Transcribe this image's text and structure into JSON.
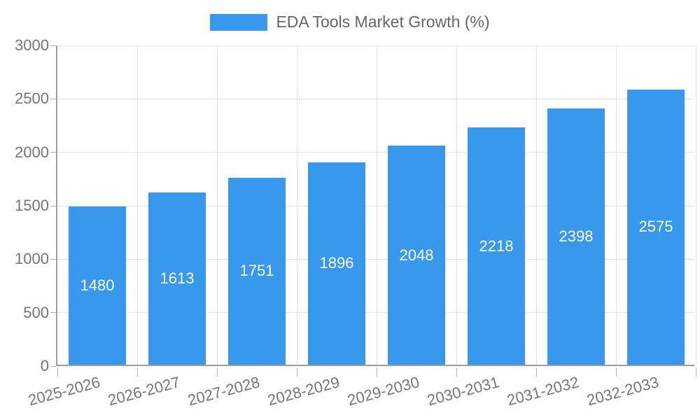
{
  "chart_data": {
    "type": "bar",
    "title": "EDA Tools Market Growth (%)",
    "categories": [
      "2025-2026",
      "2026-2027",
      "2027-2028",
      "2028-2029",
      "2029-2030",
      "2030-2031",
      "2031-2032",
      "2032-2033"
    ],
    "values": [
      1480,
      1613,
      1751,
      1896,
      2048,
      2218,
      2398,
      2575
    ],
    "xlabel": "",
    "ylabel": "",
    "ylim": [
      0,
      3000
    ],
    "yticks": [
      0,
      500,
      1000,
      1500,
      2000,
      2500,
      3000
    ],
    "grid": true,
    "legend_position": "top-center",
    "bar_color": "#3898ec",
    "value_label_color": "#ffffff",
    "tick_label_color": "#757575",
    "legend_text_color": "#666666",
    "axis_line_color": "#9e9e9e",
    "grid_line_color": "#e2e2e2",
    "x_label_rotation_deg": -15
  },
  "legend": {
    "swatch_color": "#3898ec"
  }
}
